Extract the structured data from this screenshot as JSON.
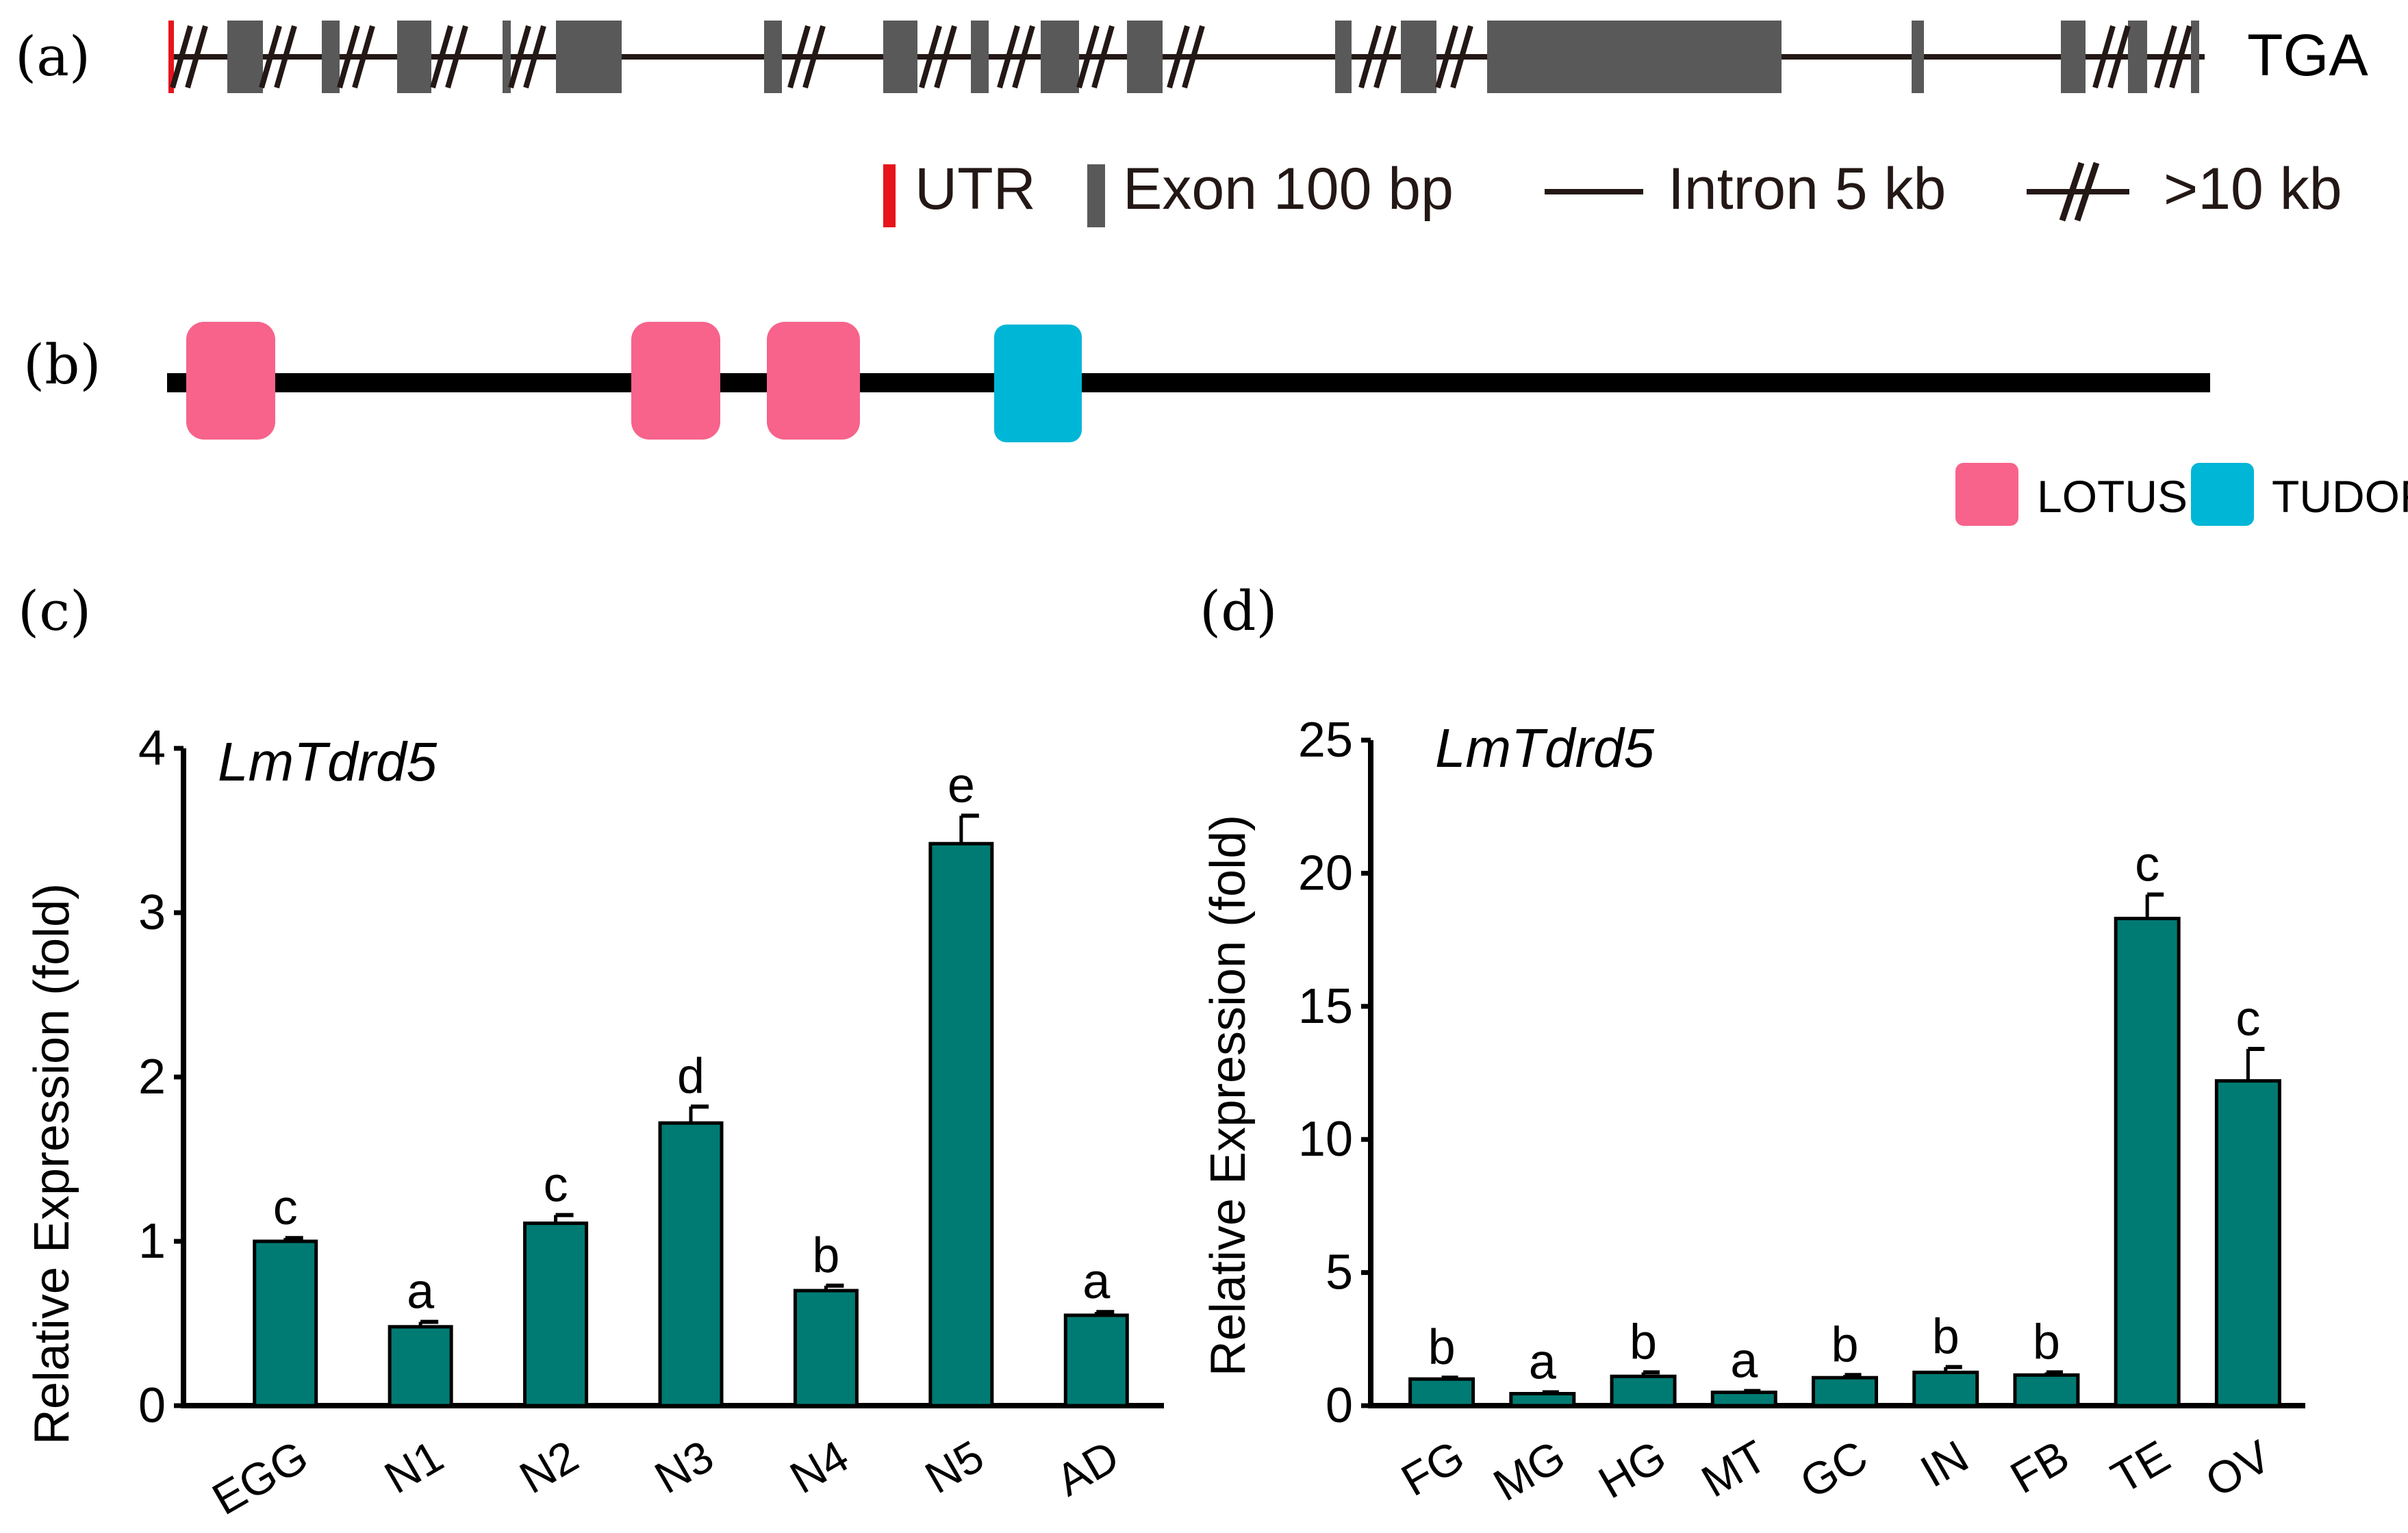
{
  "panel_a": {
    "label": "(a)",
    "stop_codon": "TGA",
    "colors": {
      "utr": "#e8141b",
      "exon": "#595959",
      "intron": "#231815"
    },
    "legend": {
      "utr": "UTR",
      "exon": "Exon 100 bp",
      "intron": "Intron 5 kb",
      "break": ">10 kb"
    }
  },
  "panel_b": {
    "label": "(b)",
    "colors": {
      "lotus": "#f7638b",
      "tudor": "#00b6d6"
    },
    "legend": {
      "lotus": "LOTUS",
      "tudor": "TUDOR"
    }
  },
  "chart_data": [
    {
      "panel": "(c)",
      "type": "bar",
      "gene": "LmTdrd5",
      "title": "",
      "xlabel": "",
      "ylabel": "Relative Expression (fold)",
      "ylim": [
        0,
        4
      ],
      "yticks": [
        "0",
        "1",
        "2",
        "3",
        "4"
      ],
      "bar_color": "#007b73",
      "categories": [
        "EGG",
        "N1",
        "N2",
        "N3",
        "N4",
        "N5",
        "AD"
      ],
      "values": [
        1.0,
        0.48,
        1.11,
        1.72,
        0.7,
        3.42,
        0.55
      ],
      "errors": [
        0.02,
        0.03,
        0.05,
        0.1,
        0.03,
        0.17,
        0.02
      ],
      "letters": [
        "c",
        "a",
        "c",
        "d",
        "b",
        "e",
        "a"
      ]
    },
    {
      "panel": "(d)",
      "type": "bar",
      "gene": "LmTdrd5",
      "title": "",
      "xlabel": "",
      "ylabel": "Relative Expression (fold)",
      "ylim": [
        0,
        25
      ],
      "yticks": [
        "0",
        "5",
        "10",
        "15",
        "20",
        "25"
      ],
      "bar_color": "#007b73",
      "categories": [
        "FG",
        "MG",
        "HG",
        "MT",
        "GC",
        "IN",
        "FB",
        "TE",
        "OV"
      ],
      "values": [
        1.0,
        0.45,
        1.1,
        0.5,
        1.05,
        1.25,
        1.15,
        18.3,
        12.2
      ],
      "errors": [
        0.05,
        0.05,
        0.15,
        0.05,
        0.1,
        0.2,
        0.1,
        0.9,
        1.2
      ],
      "letters": [
        "b",
        "a",
        "b",
        "a",
        "b",
        "b",
        "b",
        "c",
        "c"
      ]
    }
  ]
}
